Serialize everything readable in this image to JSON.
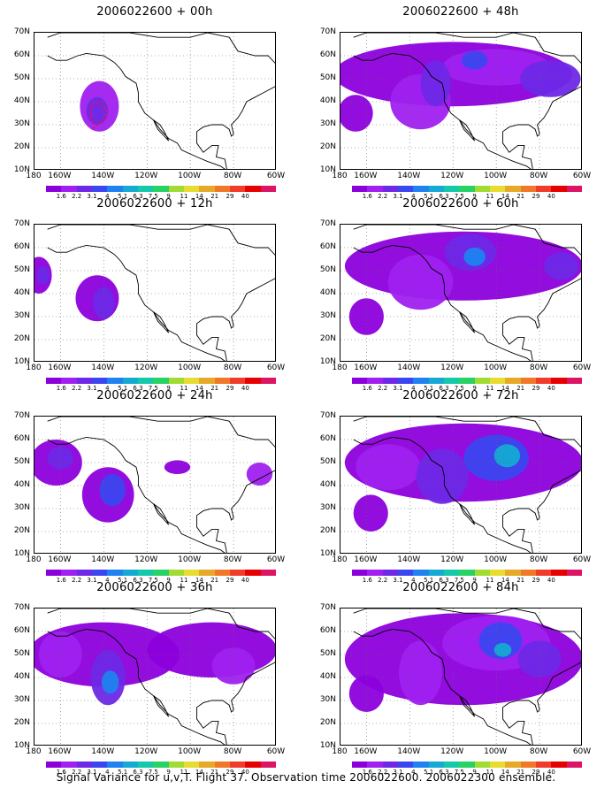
{
  "caption": "Signal Variance for u,v,T. Flight 37. Observation time 2006022600. 2006022300 ensemble.",
  "lat_labels": [
    "70N",
    "60N",
    "50N",
    "40N",
    "30N",
    "20N",
    "10N"
  ],
  "lon_labels": [
    "180",
    "160W",
    "140W",
    "120W",
    "100W",
    "80W",
    "60W"
  ],
  "colorbar": {
    "labels": [
      "1.6",
      "2.2",
      "3.1",
      "4",
      "5.1",
      "6.3",
      "7.5",
      "9",
      "11",
      "14",
      "21",
      "29",
      "40"
    ],
    "colors": [
      "#8c00dc",
      "#a020f0",
      "#6e28e6",
      "#3c46f0",
      "#1e82f0",
      "#14aad2",
      "#14c8aa",
      "#28d264",
      "#a0dc32",
      "#e6dc32",
      "#e6aa28",
      "#f07828",
      "#f03c28",
      "#e60000",
      "#dc1464"
    ]
  },
  "panels": [
    {
      "title": "2006022600 + 00h"
    },
    {
      "title": "2006022600 + 48h"
    },
    {
      "title": "2006022600 + 12h"
    },
    {
      "title": "2006022600 + 60h"
    },
    {
      "title": "2006022600 + 24h"
    },
    {
      "title": "2006022600 + 72h"
    },
    {
      "title": "2006022600 + 36h"
    },
    {
      "title": "2006022600 + 84h"
    }
  ]
}
